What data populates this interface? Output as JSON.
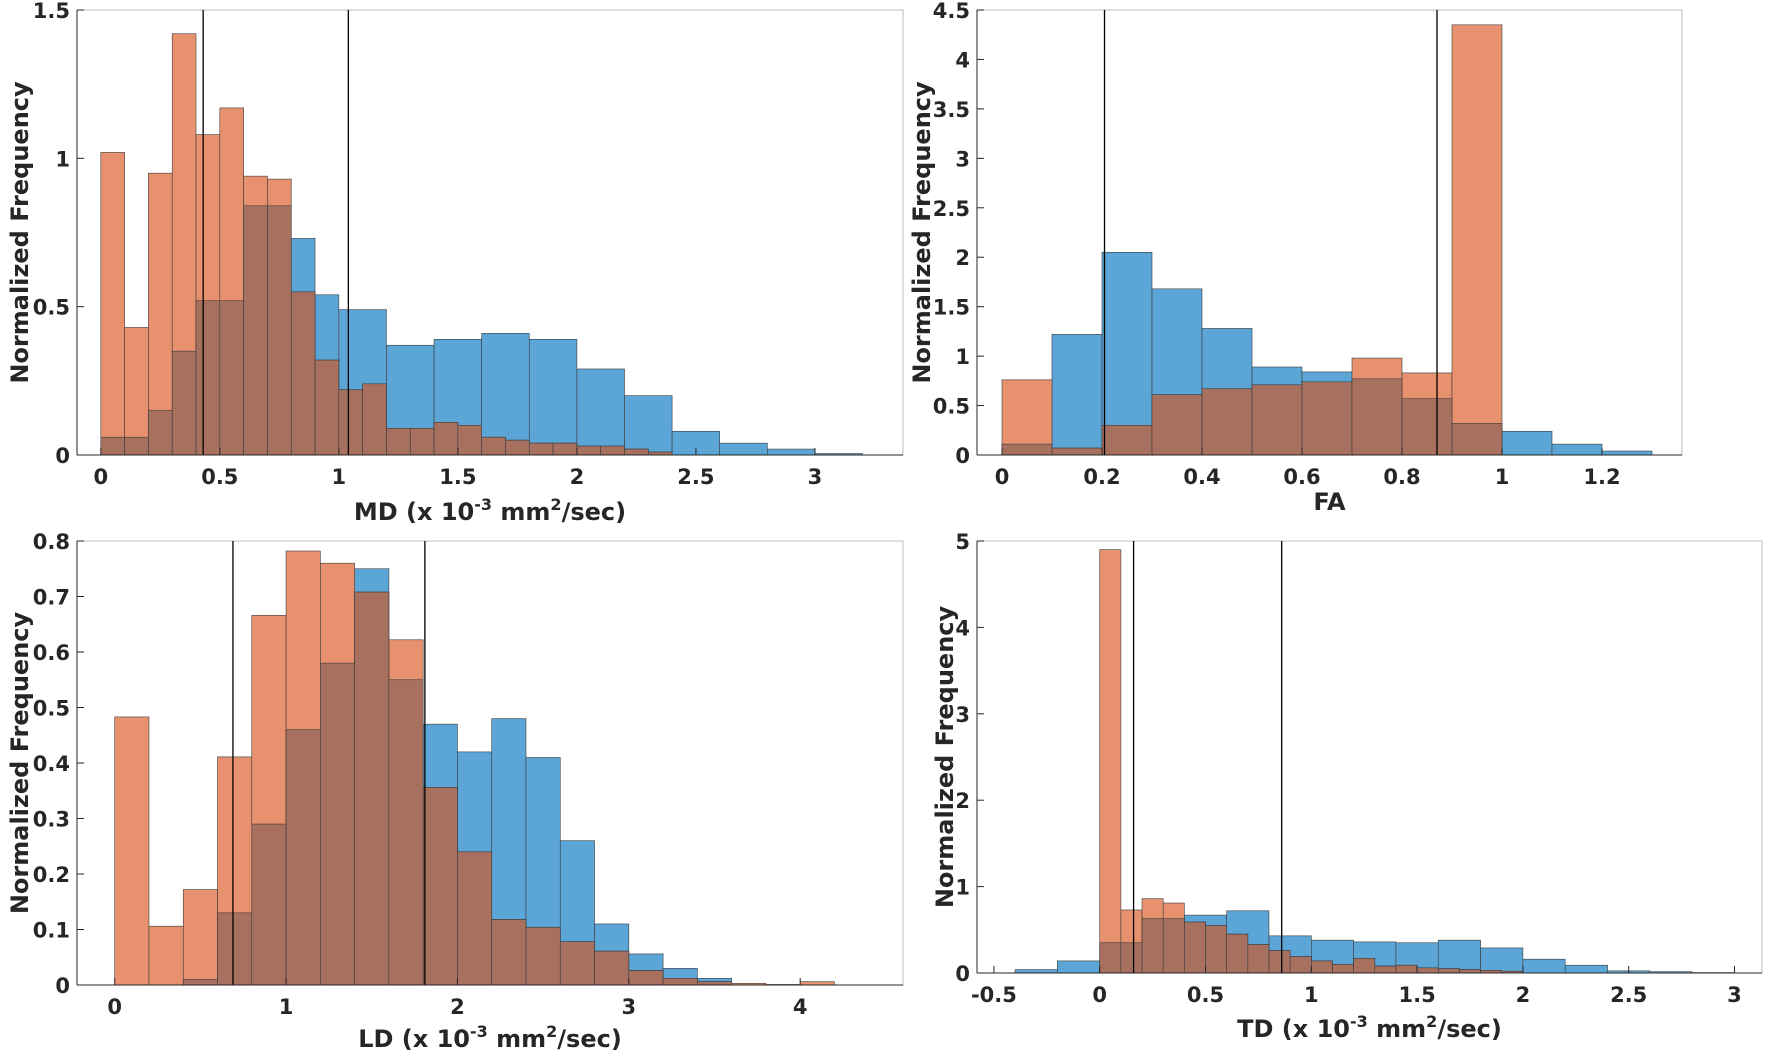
{
  "colors": {
    "blue": "#5ba6d6",
    "orange": "#e8916f",
    "overlap": "#a8705f",
    "edge": "#3c3c3c",
    "axis": "#262626",
    "frame": "#bdbdbd",
    "marker_line": "#000000"
  },
  "chart_data": [
    {
      "id": "md",
      "type": "bar",
      "title": "",
      "xlabel": "MD (x 10",
      "xlabel_sup1": "-3",
      "xlabel_mid": " mm",
      "xlabel_sup2": "2",
      "xlabel_end": "/sec)",
      "ylabel": "Normalized Frequency",
      "xlim": [
        -0.1,
        3.37
      ],
      "ylim": [
        0,
        1.5
      ],
      "xticks": [
        0,
        0.5,
        1,
        1.5,
        2,
        2.5,
        3
      ],
      "xtick_labels": [
        "0",
        "0.5",
        "1",
        "1.5",
        "2",
        "2.5",
        "3"
      ],
      "yticks": [
        0,
        0.5,
        1,
        1.5
      ],
      "ytick_labels": [
        "0",
        "0.5",
        "1",
        "1.5"
      ],
      "vlines": [
        0.43,
        1.04
      ],
      "series": [
        {
          "name": "blue",
          "color_key": "blue",
          "bin_edges": [
            0,
            0.1,
            0.2,
            0.3,
            0.4,
            0.5,
            0.6,
            0.7,
            0.8,
            0.9,
            1.0,
            1.2,
            1.4,
            1.6,
            1.8,
            2.0,
            2.2,
            2.4,
            2.6,
            2.8,
            3.0,
            3.2
          ],
          "values": [
            0.06,
            0.06,
            0.15,
            0.35,
            0.52,
            0.52,
            0.84,
            0.84,
            0.73,
            0.54,
            0.49,
            0.37,
            0.39,
            0.41,
            0.39,
            0.29,
            0.2,
            0.08,
            0.04,
            0.02,
            0.005
          ]
        },
        {
          "name": "orange",
          "color_key": "orange",
          "bin_edges": [
            0,
            0.1,
            0.2,
            0.3,
            0.4,
            0.5,
            0.6,
            0.7,
            0.8,
            0.9,
            1.0,
            1.1,
            1.2,
            1.3,
            1.4,
            1.5,
            1.6,
            1.7,
            1.8,
            1.9,
            2.0,
            2.1,
            2.2,
            2.3,
            2.4
          ],
          "values": [
            1.02,
            0.43,
            0.95,
            1.42,
            1.08,
            1.17,
            0.94,
            0.93,
            0.55,
            0.32,
            0.22,
            0.24,
            0.09,
            0.09,
            0.11,
            0.1,
            0.06,
            0.05,
            0.04,
            0.04,
            0.03,
            0.03,
            0.02,
            0.01
          ]
        }
      ]
    },
    {
      "id": "fa",
      "type": "bar",
      "title": "",
      "xlabel": "FA",
      "ylabel": "Normalized Frequency",
      "xlim": [
        -0.05,
        1.36
      ],
      "ylim": [
        0,
        4.5
      ],
      "xticks": [
        0,
        0.2,
        0.4,
        0.6,
        0.8,
        1,
        1.2
      ],
      "xtick_labels": [
        "0",
        "0.2",
        "0.4",
        "0.6",
        "0.8",
        "1",
        "1.2"
      ],
      "yticks": [
        0,
        0.5,
        1,
        1.5,
        2,
        2.5,
        3,
        3.5,
        4,
        4.5
      ],
      "ytick_labels": [
        "0",
        "0.5",
        "1",
        "1.5",
        "2",
        "2.5",
        "3",
        "3.5",
        "4",
        "4.5"
      ],
      "vlines": [
        0.205,
        0.87
      ],
      "series": [
        {
          "name": "blue",
          "color_key": "blue",
          "bin_edges": [
            0,
            0.1,
            0.2,
            0.3,
            0.4,
            0.5,
            0.6,
            0.7,
            0.8,
            0.9,
            1.0,
            1.1,
            1.2,
            1.3
          ],
          "values": [
            0.11,
            1.22,
            2.05,
            1.68,
            1.28,
            0.89,
            0.84,
            0.77,
            0.57,
            0.32,
            0.24,
            0.11,
            0.04
          ]
        },
        {
          "name": "orange",
          "color_key": "orange",
          "bin_edges": [
            0,
            0.1,
            0.2,
            0.3,
            0.4,
            0.5,
            0.6,
            0.7,
            0.8,
            0.9,
            1.0
          ],
          "values": [
            0.76,
            0.07,
            0.3,
            0.61,
            0.67,
            0.71,
            0.74,
            0.98,
            0.83,
            4.35
          ]
        }
      ]
    },
    {
      "id": "ld",
      "type": "bar",
      "title": "",
      "xlabel": "LD (x 10",
      "xlabel_sup1": "-3",
      "xlabel_mid": " mm",
      "xlabel_sup2": "2",
      "xlabel_end": "/sec)",
      "ylabel": "Normalized Frequency",
      "xlim": [
        -0.22,
        4.6
      ],
      "ylim": [
        0,
        0.8
      ],
      "xticks": [
        0,
        1,
        2,
        3,
        4
      ],
      "xtick_labels": [
        "0",
        "1",
        "2",
        "3",
        "4"
      ],
      "yticks": [
        0,
        0.1,
        0.2,
        0.3,
        0.4,
        0.5,
        0.6,
        0.7,
        0.8
      ],
      "ytick_labels": [
        "0",
        "0.1",
        "0.2",
        "0.3",
        "0.4",
        "0.5",
        "0.6",
        "0.7",
        "0.8"
      ],
      "vlines": [
        0.69,
        1.81
      ],
      "series": [
        {
          "name": "blue",
          "color_key": "blue",
          "bin_edges": [
            0.4,
            0.6,
            0.8,
            1.0,
            1.2,
            1.4,
            1.6,
            1.8,
            2.0,
            2.2,
            2.4,
            2.6,
            2.8,
            3.0,
            3.2,
            3.4,
            3.6
          ],
          "values": [
            0.01,
            0.13,
            0.29,
            0.46,
            0.58,
            0.75,
            0.55,
            0.47,
            0.42,
            0.48,
            0.41,
            0.26,
            0.11,
            0.056,
            0.03,
            0.012
          ]
        },
        {
          "name": "orange",
          "color_key": "orange",
          "bin_edges": [
            0,
            0.2,
            0.4,
            0.6,
            0.8,
            1.0,
            1.2,
            1.4,
            1.6,
            1.8,
            2.0,
            2.2,
            2.4,
            2.6,
            2.8,
            3.0,
            3.2,
            3.4,
            3.6,
            3.8,
            4.0,
            4.2,
            4.4
          ],
          "values": [
            0.483,
            0.106,
            0.172,
            0.411,
            0.666,
            0.782,
            0.76,
            0.708,
            0.622,
            0.356,
            0.24,
            0.118,
            0.104,
            0.078,
            0.061,
            0.026,
            0.012,
            0.006,
            0.003,
            0.001,
            0.006,
            0.0,
            0.006
          ]
        }
      ]
    },
    {
      "id": "td",
      "type": "bar",
      "title": "",
      "xlabel": "TD (x 10",
      "xlabel_sup1": "-3",
      "xlabel_mid": " mm",
      "xlabel_sup2": "2",
      "xlabel_end": "/sec)",
      "ylabel": "Normalized Frequency",
      "xlim": [
        -0.58,
        3.13
      ],
      "ylim": [
        0,
        5
      ],
      "xticks": [
        -0.5,
        0,
        0.5,
        1,
        1.5,
        2,
        2.5,
        3
      ],
      "xtick_labels": [
        "-0.5",
        "0",
        "0.5",
        "1",
        "1.5",
        "2",
        "2.5",
        "3"
      ],
      "yticks": [
        0,
        1,
        2,
        3,
        4,
        5
      ],
      "ytick_labels": [
        "0",
        "1",
        "2",
        "3",
        "4",
        "5"
      ],
      "vlines": [
        0.16,
        0.86
      ],
      "series": [
        {
          "name": "blue",
          "color_key": "blue",
          "bin_edges": [
            -0.4,
            -0.2,
            0,
            0.2,
            0.4,
            0.6,
            0.8,
            1.0,
            1.2,
            1.4,
            1.6,
            1.8,
            2.0,
            2.2,
            2.4,
            2.6,
            2.8,
            3.0
          ],
          "values": [
            0.04,
            0.14,
            0.35,
            0.63,
            0.67,
            0.72,
            0.43,
            0.38,
            0.36,
            0.35,
            0.38,
            0.29,
            0.16,
            0.09,
            0.025,
            0.015,
            0.005
          ]
        },
        {
          "name": "orange",
          "color_key": "orange",
          "bin_edges": [
            0,
            0.1,
            0.2,
            0.3,
            0.4,
            0.5,
            0.6,
            0.7,
            0.8,
            0.9,
            1.0,
            1.1,
            1.2,
            1.3,
            1.4,
            1.5,
            1.6,
            1.7,
            1.8,
            1.9,
            2.0
          ],
          "values": [
            4.9,
            0.73,
            0.86,
            0.81,
            0.59,
            0.55,
            0.45,
            0.33,
            0.26,
            0.19,
            0.14,
            0.1,
            0.17,
            0.08,
            0.09,
            0.06,
            0.05,
            0.04,
            0.03,
            0.02
          ]
        }
      ]
    }
  ]
}
